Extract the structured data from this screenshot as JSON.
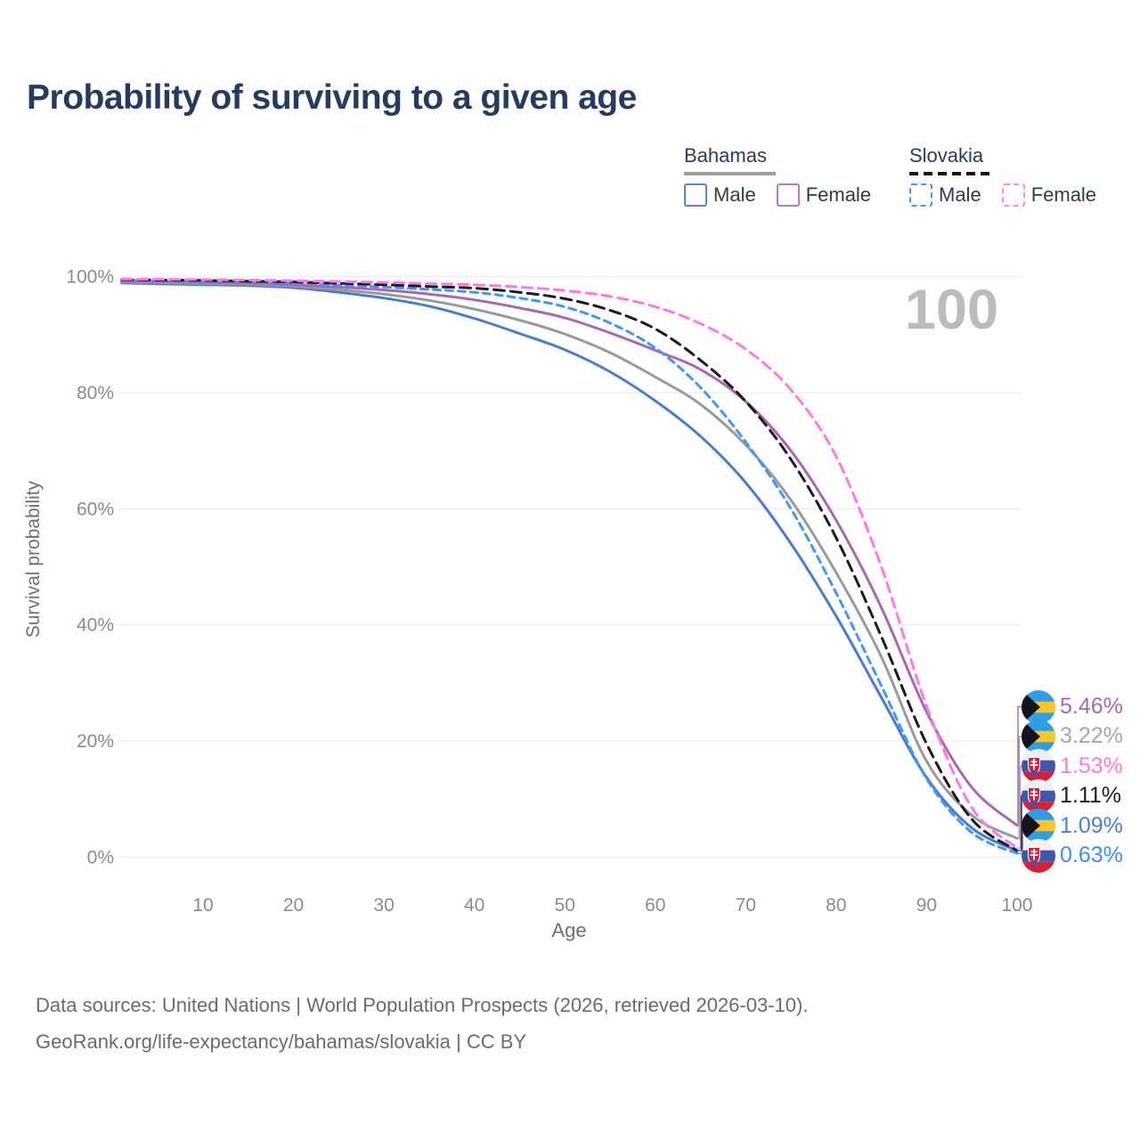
{
  "header": {
    "title": "Probability of surviving to a given age"
  },
  "legend": {
    "groups": [
      {
        "name": "Bahamas",
        "line_style": "solid",
        "line_color": "#9e9e9e",
        "items": [
          {
            "label": "Male",
            "color": "#5b85c9"
          },
          {
            "label": "Female",
            "color": "#bd77c2"
          }
        ]
      },
      {
        "name": "Slovakia",
        "line_style": "dashed",
        "line_color": "#161616",
        "items": [
          {
            "label": "Male",
            "color": "#4495fa"
          },
          {
            "label": "Female",
            "color": "#ff85e8"
          }
        ]
      }
    ]
  },
  "axes": {
    "y_title": "Survival probability",
    "x_title": "Age",
    "y_ticks": [
      {
        "label": "0%",
        "value": 0
      },
      {
        "label": "20%",
        "value": 20
      },
      {
        "label": "40%",
        "value": 40
      },
      {
        "label": "60%",
        "value": 60
      },
      {
        "label": "80%",
        "value": 80
      },
      {
        "label": "100%",
        "value": 100
      }
    ],
    "x_ticks": [
      {
        "label": "10",
        "value": 10
      },
      {
        "label": "20",
        "value": 20
      },
      {
        "label": "30",
        "value": 30
      },
      {
        "label": "40",
        "value": 40
      },
      {
        "label": "50",
        "value": 50
      },
      {
        "label": "60",
        "value": 60
      },
      {
        "label": "70",
        "value": 70
      },
      {
        "label": "80",
        "value": 80
      },
      {
        "label": "90",
        "value": 90
      },
      {
        "label": "100",
        "value": 100
      }
    ]
  },
  "watermark": {
    "text": "100"
  },
  "chart_data": {
    "type": "line",
    "title": "Probability of surviving to a given age",
    "xlabel": "Age",
    "ylabel": "Survival probability",
    "xlim": [
      0,
      100
    ],
    "ylim": [
      0,
      100
    ],
    "grid": "horizontal",
    "legend_position": "top-right",
    "x": [
      1,
      5,
      10,
      15,
      20,
      25,
      30,
      35,
      40,
      45,
      50,
      55,
      60,
      65,
      70,
      75,
      80,
      85,
      90,
      95,
      100
    ],
    "series": [
      {
        "key": "bahamas_male",
        "name": "Bahamas Male",
        "country": "Bahamas",
        "color": "#497ccd",
        "dash": null,
        "values": [
          98.9,
          98.75,
          98.6,
          98.45,
          98.1,
          97.3,
          96.3,
          94.9,
          92.8,
          90.2,
          87.4,
          83.6,
          78.6,
          72.5,
          64.5,
          54.0,
          41.5,
          27.5,
          13.7,
          5.0,
          1.09
        ]
      },
      {
        "key": "bahamas_both",
        "name": "Bahamas Both sexes",
        "country": "Bahamas",
        "color": "#9a9a9a",
        "dash": null,
        "values": [
          99.05,
          98.95,
          98.8,
          98.65,
          98.35,
          97.75,
          97.0,
          95.9,
          94.4,
          92.5,
          90.1,
          86.9,
          82.7,
          78.0,
          71.0,
          61.5,
          49.0,
          34.5,
          16.5,
          7.2,
          3.22
        ]
      },
      {
        "key": "bahamas_female",
        "name": "Bahamas Female",
        "country": "Bahamas",
        "color": "#a768b0",
        "dash": null,
        "values": [
          99.2,
          99.15,
          99.0,
          98.85,
          98.6,
          98.2,
          97.7,
          97.0,
          96.0,
          94.6,
          92.9,
          90.3,
          87.3,
          84.0,
          78.5,
          70.0,
          58.0,
          43.0,
          25.0,
          12.0,
          5.46
        ]
      },
      {
        "key": "slovakia_male",
        "name": "Slovakia Male",
        "country": "Slovakia",
        "color": "#4495fa",
        "dash": "8 6",
        "values": [
          99.4,
          99.3,
          99.2,
          99.05,
          98.9,
          98.55,
          98.2,
          97.8,
          97.3,
          96.3,
          94.8,
          92.0,
          87.7,
          80.9,
          71.5,
          60.0,
          45.5,
          29.5,
          13.5,
          4.2,
          0.63
        ]
      },
      {
        "key": "slovakia_both",
        "name": "Slovakia Both sexes",
        "country": "Slovakia",
        "color": "#1b1b1b",
        "dash": "12 7",
        "values": [
          99.5,
          99.42,
          99.35,
          99.22,
          99.1,
          98.85,
          98.6,
          98.3,
          98.0,
          97.3,
          96.2,
          94.2,
          91.0,
          85.6,
          78.5,
          68.5,
          55.0,
          38.0,
          19.5,
          6.5,
          1.11
        ]
      },
      {
        "key": "slovakia_female",
        "name": "Slovakia Female",
        "country": "Slovakia",
        "color": "#ff7ae6",
        "dash": "11 7",
        "values": [
          99.6,
          99.55,
          99.5,
          99.4,
          99.3,
          99.15,
          99.0,
          98.8,
          98.6,
          98.2,
          97.6,
          96.6,
          94.8,
          91.9,
          87.5,
          80.5,
          69.0,
          50.0,
          26.0,
          8.5,
          1.53
        ]
      }
    ]
  },
  "end_labels": [
    {
      "value": "5.46%",
      "color": "#a768b0",
      "flag": "bahamas",
      "series_key": "bahamas_female"
    },
    {
      "value": "3.22%",
      "color": "#a6a6a6",
      "flag": "bahamas",
      "series_key": "bahamas_both"
    },
    {
      "value": "1.53%",
      "color": "#ff7ae6",
      "flag": "slovakia",
      "series_key": "slovakia_female"
    },
    {
      "value": "1.11%",
      "color": "#1e1e1e",
      "flag": "slovakia",
      "series_key": "slovakia_both"
    },
    {
      "value": "1.09%",
      "color": "#4a7ed2",
      "flag": "bahamas",
      "series_key": "bahamas_male"
    },
    {
      "value": "0.63%",
      "color": "#3d8ef5",
      "flag": "slovakia",
      "series_key": "slovakia_male"
    }
  ],
  "footer": {
    "line1": "Data sources: United Nations | World Population Prospects (2026, retrieved 2026-03-10).",
    "line2": "GeoRank.org/life-expectancy/bahamas/slovakia | CC BY"
  }
}
